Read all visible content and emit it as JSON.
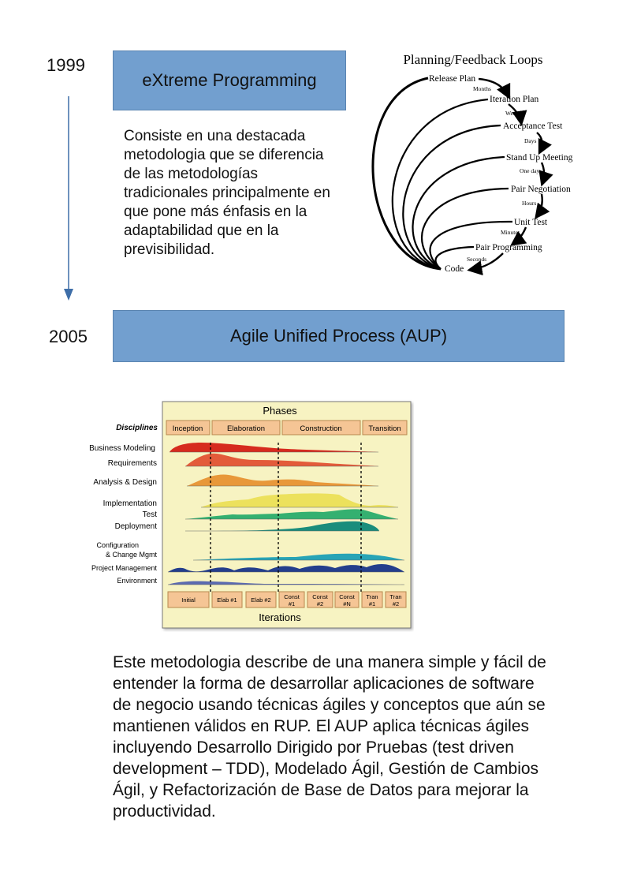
{
  "timeline": [
    {
      "year": "1999",
      "title": "eXtreme Programming",
      "description": "Consiste en una destacada metodologia que se diferencia de las metodologías tradicionales principalmente en que pone más énfasis en la adaptabilidad que en la previsibilidad."
    },
    {
      "year": "2005",
      "title": "Agile Unified Process (AUP)",
      "description": "Este metodologia describe de una manera simple y fácil de entender la forma de desarrollar aplicaciones de software de negocio usando técnicas ágiles y conceptos que aún se mantienen válidos en RUP. El AUP aplica técnicas ágiles incluyendo Desarrollo Dirigido por Pruebas (test driven development – TDD), Modelado Ágil, Gestión de Cambios Ágil, y Refactorización de Base de Datos para mejorar la productividad."
    }
  ],
  "xp_diagram": {
    "title": "Planning/Feedback Loops",
    "nodes": [
      "Release Plan",
      "Iteration Plan",
      "Acceptance Test",
      "Stand Up Meeting",
      "Pair Negotiation",
      "Unit Test",
      "Pair Programming",
      "Code"
    ],
    "intervals": [
      "Months",
      "Weeks",
      "Days",
      "One day",
      "Hours",
      "Minutes",
      "Seconds"
    ]
  },
  "aup_chart": {
    "title": "Phases",
    "disciplines_header": "Disciplines",
    "phases": [
      "Inception",
      "Elaboration",
      "Construction",
      "Transition"
    ],
    "disciplines": [
      "Business Modeling",
      "Requirements",
      "Analysis & Design",
      "Implementation",
      "Test",
      "Deployment",
      "Configuration",
      "& Change Mgmt",
      "Project Management",
      "Environment"
    ],
    "iterations_label": "Iterations",
    "iterations": [
      {
        "l1": "Initial",
        "l2": ""
      },
      {
        "l1": "Elab #1",
        "l2": ""
      },
      {
        "l1": "Elab #2",
        "l2": ""
      },
      {
        "l1": "Const",
        "l2": "#1"
      },
      {
        "l1": "Const",
        "l2": "#2"
      },
      {
        "l1": "Const",
        "l2": "#N"
      },
      {
        "l1": "Tran",
        "l2": "#1"
      },
      {
        "l1": "Tran",
        "l2": "#2"
      }
    ]
  },
  "colors": {
    "banner": "#729fcf",
    "arrow": "#3e6ea8",
    "panel": "#f7f3c2",
    "box": "#f5c595"
  }
}
